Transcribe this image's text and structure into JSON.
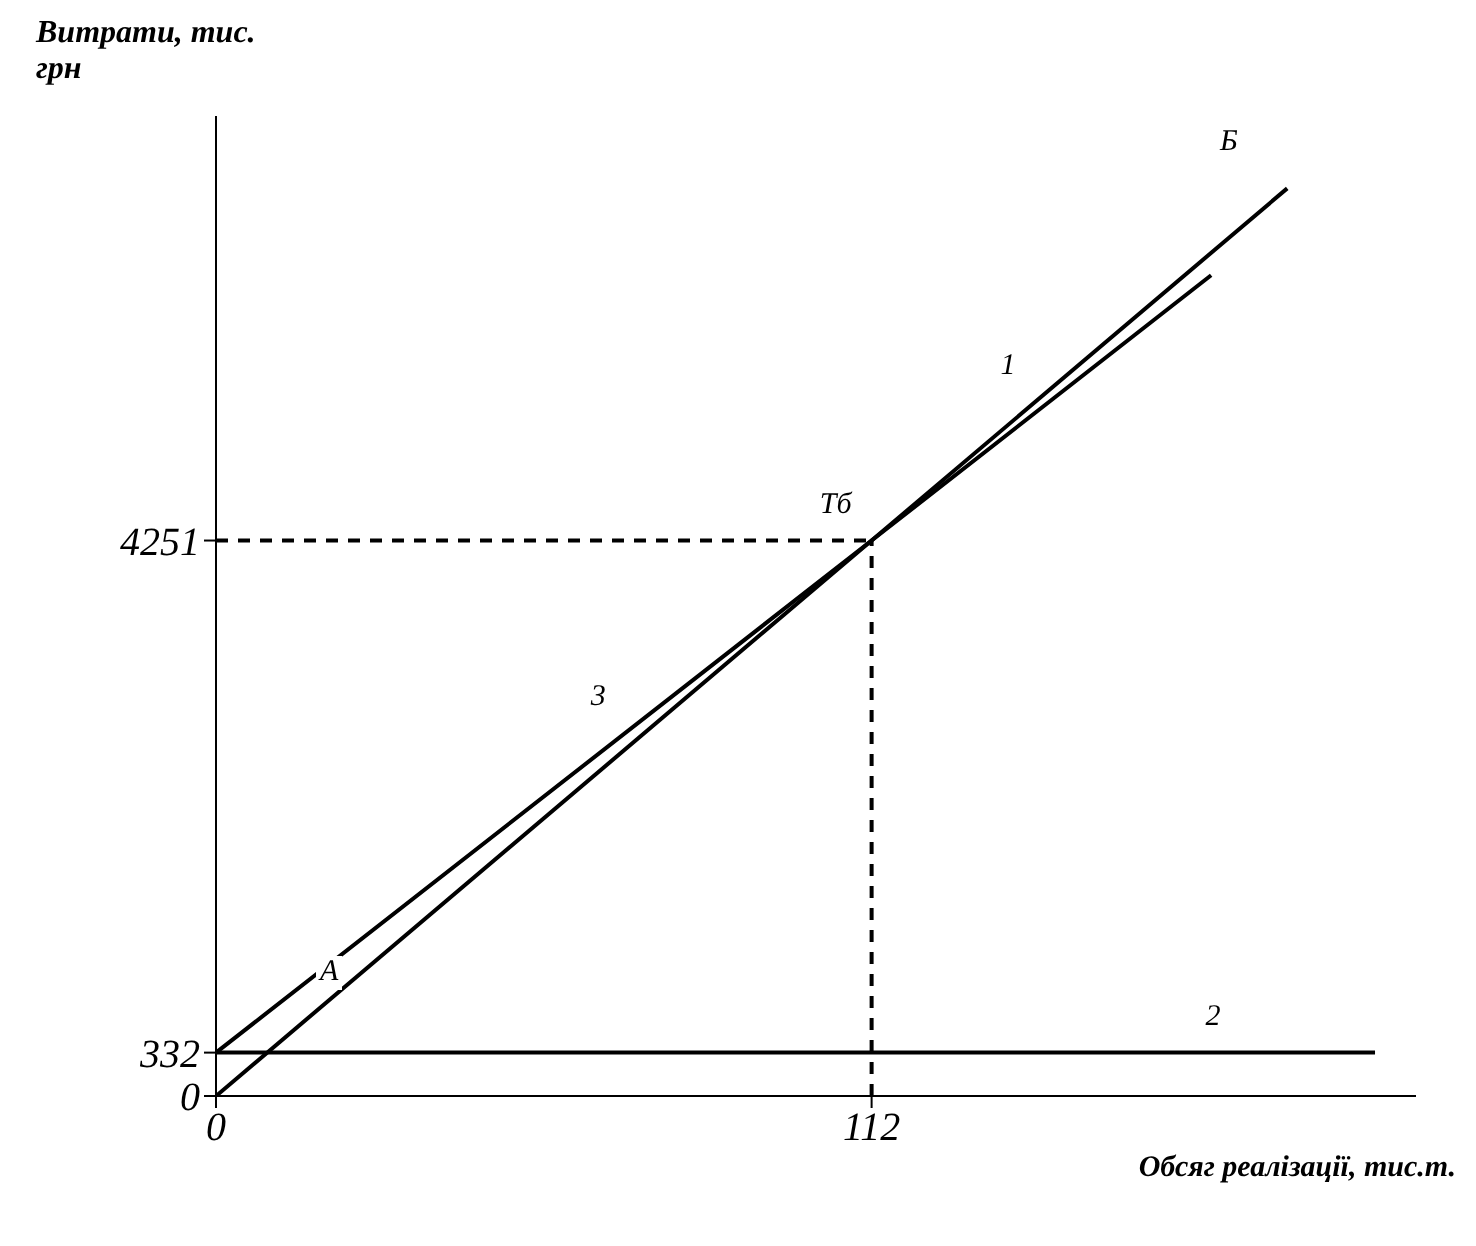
{
  "chart_data": {
    "type": "line",
    "xlabel": "Обсяг реалізації, тис.т.",
    "ylabel": "Витрати, тис. грн",
    "series": [
      {
        "type": "line",
        "color": "#000000",
        "x": [
          0,
          112,
          183
        ],
        "values": [
          0,
          4251,
          6946
        ]
      },
      {
        "type": "line",
        "color": "#000000",
        "x": [
          0,
          198
        ],
        "values": [
          332,
          332
        ]
      },
      {
        "type": "line",
        "color": "#000000",
        "x": [
          0,
          112,
          170
        ],
        "values": [
          332,
          4251,
          6281
        ]
      }
    ],
    "xlim": [
      0,
      205
    ],
    "ylim": [
      0,
      7500
    ],
    "xticks": [
      0,
      112
    ],
    "yticks": [
      0,
      332,
      4251
    ],
    "ref_lines": [
      {
        "axis": "x",
        "value": 112,
        "line_style": "dashed"
      },
      {
        "axis": "y",
        "value": 4251,
        "line_style": "dashed"
      }
    ],
    "annotations": [
      {
        "text": "1",
        "x": 140,
        "y": 5314
      },
      {
        "text": "2",
        "x": 175,
        "y": 332
      },
      {
        "text": "3",
        "x": 70,
        "y": 2781
      },
      {
        "text": "Тб",
        "x": 112,
        "y": 4251
      },
      "А",
      "Б"
    ]
  }
}
